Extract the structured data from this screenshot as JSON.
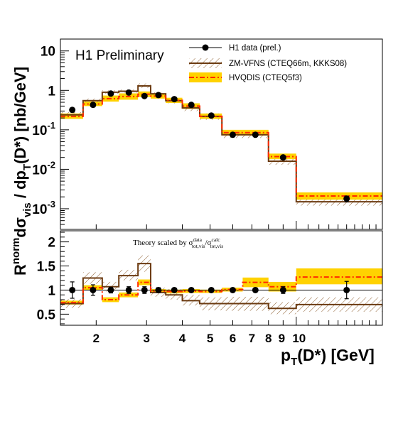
{
  "chart_data": {
    "type": "line",
    "plot_label": "H1 Preliminary",
    "xlabel_main": "p",
    "xlabel_sub": "T",
    "xlabel_rest": "(D*) [GeV]",
    "ylabel": {
      "prefix": "R",
      "prefix_sup": "norm",
      "d1": "dσ",
      "d1_sub": "vis",
      "slash": " / dp",
      "d2_sub": "T",
      "rest": "(D*) [nb/GeV]"
    },
    "x_scale": "log",
    "x_range": [
      1.5,
      20
    ],
    "x_ticks": [
      {
        "value": 2,
        "label": "2"
      },
      {
        "value": 3,
        "label": "3"
      },
      {
        "value": 4,
        "label": "4"
      },
      {
        "value": 5,
        "label": "5"
      },
      {
        "value": 6,
        "label": "6"
      },
      {
        "value": 7,
        "label": "7"
      },
      {
        "value": 8,
        "label": "8"
      },
      {
        "value": 9,
        "label": "9"
      },
      {
        "value": 10,
        "label": "10"
      }
    ],
    "bin_edges": [
      1.5,
      1.8,
      2.1,
      2.4,
      2.8,
      3.1,
      3.5,
      4.0,
      4.6,
      5.5,
      6.5,
      8.0,
      10.0,
      20.0
    ],
    "upper": {
      "y_scale": "log",
      "y_range": [
        0.0003,
        20
      ],
      "y_ticks": [
        {
          "value": 0.001,
          "base": "10",
          "exp": "-3"
        },
        {
          "value": 0.01,
          "base": "10",
          "exp": "-2"
        },
        {
          "value": 0.1,
          "base": "10",
          "exp": "-1"
        },
        {
          "value": 1,
          "base": "1",
          "exp": ""
        },
        {
          "value": 10,
          "base": "10",
          "exp": ""
        }
      ],
      "data_x": [
        1.65,
        1.95,
        2.25,
        2.6,
        2.95,
        3.3,
        3.75,
        4.3,
        5.05,
        6.0,
        7.2,
        9.0,
        15.0
      ],
      "data_y": [
        0.32,
        0.43,
        0.83,
        0.88,
        0.72,
        0.76,
        0.6,
        0.43,
        0.23,
        0.075,
        0.075,
        0.02,
        0.0018
      ],
      "data_err": [
        0.03,
        0.035,
        0.06,
        0.06,
        0.05,
        0.05,
        0.04,
        0.03,
        0.015,
        0.006,
        0.006,
        0.002,
        0.0003
      ],
      "zm_central": [
        0.24,
        0.55,
        0.9,
        0.95,
        1.3,
        0.82,
        0.55,
        0.36,
        0.22,
        0.075,
        0.075,
        0.016,
        0.0015
      ],
      "zm_low": [
        0.2,
        0.5,
        0.82,
        0.88,
        1.15,
        0.75,
        0.47,
        0.3,
        0.18,
        0.062,
        0.062,
        0.013,
        0.0012
      ],
      "zm_high": [
        0.28,
        0.62,
        1.0,
        1.05,
        1.5,
        0.9,
        0.62,
        0.42,
        0.26,
        0.09,
        0.09,
        0.02,
        0.0018
      ],
      "hvq_central": [
        0.22,
        0.45,
        0.62,
        0.7,
        0.8,
        0.72,
        0.56,
        0.4,
        0.22,
        0.085,
        0.085,
        0.021,
        0.0021
      ],
      "hvq_low": [
        0.19,
        0.4,
        0.52,
        0.58,
        0.68,
        0.62,
        0.48,
        0.34,
        0.19,
        0.072,
        0.072,
        0.018,
        0.0017
      ],
      "hvq_high": [
        0.26,
        0.52,
        0.74,
        0.84,
        0.94,
        0.84,
        0.65,
        0.47,
        0.26,
        0.1,
        0.1,
        0.025,
        0.0026
      ]
    },
    "lower": {
      "y_scale": "linear",
      "y_range": [
        0.27,
        2.23
      ],
      "y_ticks": [
        {
          "value": 0.5,
          "label": "0.5"
        },
        {
          "value": 1,
          "label": "1"
        },
        {
          "value": 1.5,
          "label": "1.5"
        },
        {
          "value": 2,
          "label": "2"
        }
      ],
      "note": {
        "text": "Theory scaled by σ",
        "sup1": "data",
        "sub1": "tot,vis",
        "slash": "/σ",
        "sup2": "calc",
        "sub2": "tot,vis"
      },
      "data_x": [
        1.65,
        1.95,
        2.25,
        2.6,
        2.95,
        3.3,
        3.75,
        4.3,
        5.05,
        6.0,
        7.2,
        9.0,
        15.0
      ],
      "data_y": [
        1.0,
        1.0,
        1.0,
        1.0,
        1.0,
        1.0,
        1.0,
        1.0,
        1.0,
        1.0,
        1.0,
        1.0,
        1.0
      ],
      "data_err": [
        0.17,
        0.11,
        0.06,
        0.07,
        0.07,
        0.05,
        0.04,
        0.04,
        0.03,
        0.03,
        0.03,
        0.07,
        0.18
      ],
      "zm_central": [
        0.72,
        1.25,
        1.07,
        1.3,
        1.55,
        0.95,
        0.9,
        0.78,
        0.72,
        0.72,
        0.72,
        0.62,
        0.7
      ],
      "zm_low": [
        0.63,
        1.13,
        0.97,
        1.2,
        1.38,
        0.86,
        0.8,
        0.68,
        0.58,
        0.57,
        0.57,
        0.5,
        0.55
      ],
      "zm_high": [
        0.81,
        1.37,
        1.17,
        1.42,
        1.72,
        1.05,
        1.02,
        0.9,
        0.85,
        0.86,
        0.86,
        0.75,
        0.85
      ],
      "hvq_central": [
        0.74,
        1.05,
        0.8,
        0.9,
        1.16,
        0.98,
        0.97,
        0.98,
        0.97,
        1.01,
        1.16,
        1.07,
        1.27
      ],
      "hvq_low": [
        0.7,
        1.0,
        0.75,
        0.85,
        1.1,
        0.94,
        0.93,
        0.94,
        0.94,
        0.97,
        1.06,
        0.97,
        1.12
      ],
      "hvq_high": [
        0.78,
        1.1,
        0.85,
        0.95,
        1.22,
        1.02,
        1.01,
        1.02,
        1.01,
        1.05,
        1.26,
        1.17,
        1.45
      ]
    },
    "legend": {
      "placement": "top-right",
      "entries": [
        {
          "label": "H1 data (prel.)"
        },
        {
          "label": "ZM-VFNS (CTEQ66m, KKKS08)"
        },
        {
          "label": "HVQDIS (CTEQ5f3)"
        }
      ]
    },
    "colors": {
      "axis": "#000000",
      "data": "#000000",
      "zm_line": "#6b3a10",
      "zm_hatch": "#8a5a2a",
      "hvq_band": "#ffd200",
      "hvq_line": "#ff2a00"
    }
  }
}
